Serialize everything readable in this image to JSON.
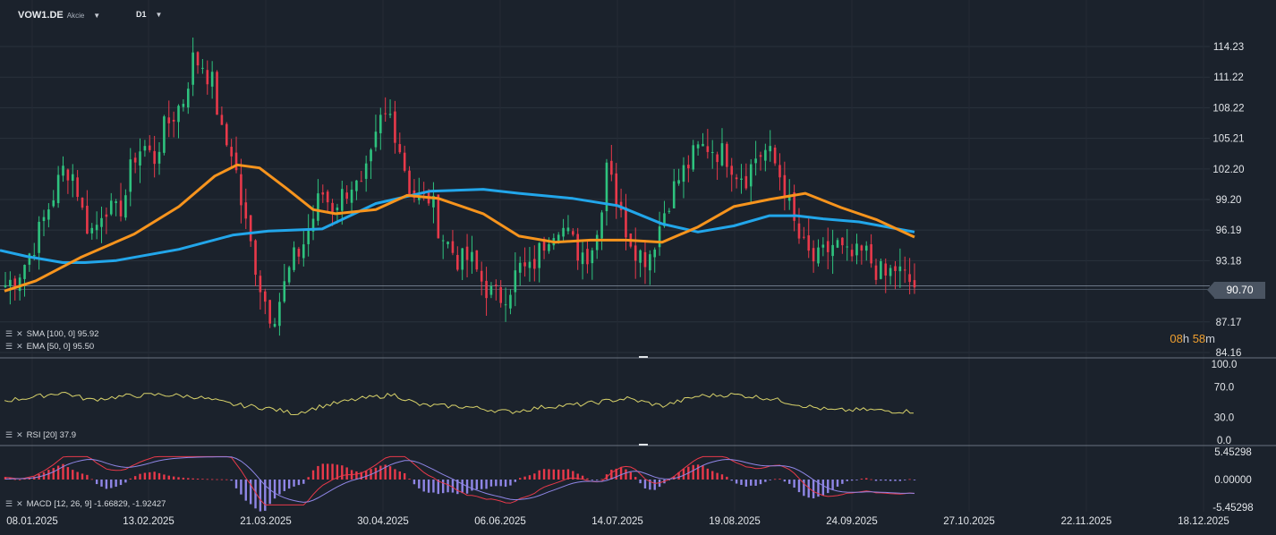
{
  "header": {
    "symbol": "VOW1.DE",
    "type": "Akcie",
    "timeframe": "D1"
  },
  "indicators": {
    "sma": "SMA [100, 0] 95.92",
    "ema": "EMA [50, 0] 95.50",
    "rsi": "RSI [20] 37.9",
    "macd": "MACD [12, 26, 9] -1.66829, -1.92427"
  },
  "timer": {
    "hours": "08",
    "h": "h",
    "minutes": "58",
    "m": "m"
  },
  "last_price": "90.70",
  "colors": {
    "bg": "#1b222c",
    "up": "#2ec27e",
    "down": "#e8394a",
    "sma": "#22a6ea",
    "ema": "#f7941d",
    "rsi": "#d9d36a",
    "macd_line": "#e8394a",
    "signal_line": "#8f86e6",
    "hist_up": "#e8394a",
    "hist_down": "#8f86e6"
  },
  "icons": {
    "indicator_settings": "list-icon",
    "indicator_close": "close-icon",
    "dropdown": "chevron-down-icon"
  },
  "chart_data": {
    "type": "candlestick",
    "price_axis": {
      "ticks": [
        "114.23",
        "111.22",
        "108.22",
        "105.21",
        "102.20",
        "99.20",
        "96.19",
        "93.18",
        "87.17",
        "84.16"
      ],
      "ylim": [
        84.16,
        114.23
      ]
    },
    "rsi_axis": {
      "ticks": [
        "100.0",
        "70.0",
        "30.0",
        "0.0"
      ],
      "ylim": [
        0,
        100
      ]
    },
    "macd_axis": {
      "ticks": [
        "5.45298",
        "0.00000",
        "-5.45298"
      ],
      "ylim": [
        -5.45298,
        5.45298
      ]
    },
    "x_labels": [
      "08.01.2025",
      "13.02.2025",
      "21.03.2025",
      "30.04.2025",
      "06.06.2025",
      "14.07.2025",
      "19.08.2025",
      "24.09.2025",
      "27.10.2025",
      "22.11.2025",
      "18.12.2025"
    ],
    "close_keypoints": [
      90.8,
      91.5,
      93,
      95,
      97.5,
      100,
      102.5,
      101.5,
      97,
      96,
      99,
      97.5,
      99,
      103.5,
      104.5,
      103,
      106,
      107.5,
      109,
      113,
      112.5,
      110.5,
      105,
      104,
      98,
      94,
      90,
      87.5,
      90,
      93,
      94.5,
      97,
      100,
      98.5,
      99.5,
      100.8,
      100,
      103,
      107,
      107.5,
      104,
      100,
      99,
      99.5,
      96,
      94.5,
      93,
      93.5,
      91.5,
      90,
      89.5,
      90.5,
      92.5,
      92,
      94,
      96,
      97,
      95.5,
      94,
      94,
      96,
      104.5,
      98,
      96,
      94,
      93.5,
      96,
      99,
      101,
      102.5,
      104,
      104.5,
      104,
      103.5,
      102,
      101.5,
      103.5,
      104,
      102.5,
      100,
      96,
      94,
      93,
      94,
      95,
      93.5,
      93.5,
      94,
      92.5,
      91.5,
      92.5,
      91.5,
      90.7
    ],
    "sma_keypoints": [
      [
        0,
        94.2
      ],
      [
        30,
        93.6
      ],
      [
        70,
        93
      ],
      [
        95,
        93
      ],
      [
        130,
        93.2
      ],
      [
        200,
        94.3
      ],
      [
        260,
        95.7
      ],
      [
        300,
        96.1
      ],
      [
        360,
        96.3
      ],
      [
        420,
        98.8
      ],
      [
        480,
        100
      ],
      [
        540,
        100.2
      ],
      [
        580,
        99.8
      ],
      [
        640,
        99.3
      ],
      [
        690,
        98.6
      ],
      [
        740,
        96.8
      ],
      [
        780,
        96
      ],
      [
        820,
        96.6
      ],
      [
        860,
        97.6
      ],
      [
        890,
        97.6
      ],
      [
        920,
        97.3
      ],
      [
        960,
        97
      ],
      [
        1022,
        96
      ]
    ],
    "ema_keypoints": [
      [
        5,
        90.2
      ],
      [
        40,
        91.2
      ],
      [
        90,
        93.5
      ],
      [
        150,
        95.8
      ],
      [
        200,
        98.5
      ],
      [
        240,
        101.5
      ],
      [
        265,
        102.6
      ],
      [
        290,
        102.3
      ],
      [
        320,
        100.3
      ],
      [
        350,
        98.2
      ],
      [
        375,
        97.8
      ],
      [
        420,
        98.2
      ],
      [
        455,
        99.6
      ],
      [
        490,
        99.3
      ],
      [
        540,
        97.8
      ],
      [
        580,
        95.6
      ],
      [
        620,
        95
      ],
      [
        660,
        95.2
      ],
      [
        700,
        95.2
      ],
      [
        740,
        95
      ],
      [
        780,
        96.5
      ],
      [
        820,
        98.5
      ],
      [
        860,
        99.2
      ],
      [
        900,
        99.8
      ],
      [
        940,
        98.4
      ],
      [
        980,
        97.2
      ],
      [
        1022,
        95.5
      ]
    ],
    "rsi_keypoints": [
      [
        5,
        52
      ],
      [
        40,
        57
      ],
      [
        70,
        63
      ],
      [
        100,
        53
      ],
      [
        140,
        58
      ],
      [
        180,
        60
      ],
      [
        220,
        57
      ],
      [
        260,
        47
      ],
      [
        300,
        42
      ],
      [
        330,
        35
      ],
      [
        360,
        45
      ],
      [
        400,
        54
      ],
      [
        440,
        60
      ],
      [
        470,
        46
      ],
      [
        520,
        44
      ],
      [
        570,
        37
      ],
      [
        610,
        44
      ],
      [
        650,
        47
      ],
      [
        700,
        55
      ],
      [
        740,
        45
      ],
      [
        780,
        58
      ],
      [
        820,
        60
      ],
      [
        860,
        55
      ],
      [
        900,
        45
      ],
      [
        930,
        39
      ],
      [
        970,
        40
      ],
      [
        1000,
        38
      ],
      [
        1022,
        37.9
      ]
    ]
  }
}
